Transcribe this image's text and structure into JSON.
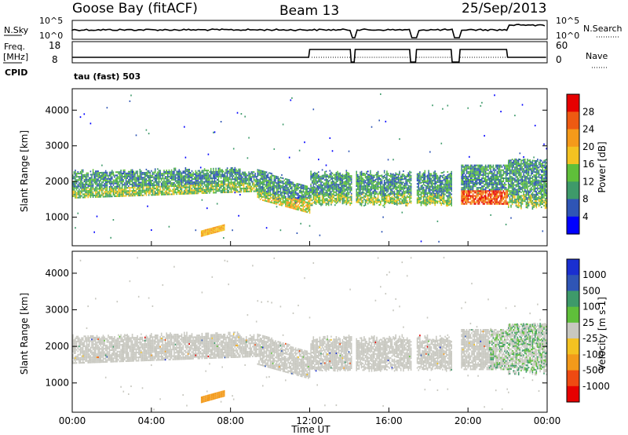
{
  "header": {
    "station": "Goose Bay (fitACF)",
    "beam": "Beam 13",
    "date": "25/Sep/2013"
  },
  "noise_panel": {
    "left_label": "N.Sky",
    "left_ticks": [
      "10^5",
      "10^0"
    ],
    "right_ticks": [
      "10^5",
      "10^0"
    ],
    "right_label": "N.Search"
  },
  "freq_panel": {
    "left_label_1": "Freq.",
    "left_label_2": "[MHz]",
    "left_ticks": [
      "18",
      "8"
    ],
    "right_ticks": [
      "60",
      "0"
    ],
    "right_label": "Nave",
    "cpid_label": "CPID",
    "cpid_value": "tau (fast) 503"
  },
  "colors": {
    "power_scale": [
      "#0000ff",
      "#2f55b5",
      "#3e9a6a",
      "#5fbf3a",
      "#f4c221",
      "#f59a1a",
      "#ee5a12",
      "#e60000"
    ],
    "velocity_scale": [
      "#e60000",
      "#ef4a12",
      "#f39a1a",
      "#f4c221",
      "#c8c8c0",
      "#5fbf3a",
      "#3e9a6a",
      "#2f55b5",
      "#1a2fd0"
    ]
  },
  "chart_data": [
    {
      "type": "heatmap",
      "panel": "power",
      "ylabel": "Slant Range [km]",
      "yticks": [
        "1000",
        "2000",
        "3000",
        "4000"
      ],
      "ylim": [
        200,
        4600
      ],
      "xlim": [
        0,
        24
      ],
      "colorbar_label": "Power [dB]",
      "colorbar_ticks": [
        "28",
        "24",
        "20",
        "16",
        "12",
        "8",
        "4"
      ],
      "features": [
        {
          "hours": [
            0,
            12
          ],
          "band_km": [
            1500,
            2350
          ],
          "level": "8-16 dB"
        },
        {
          "hours": [
            9.5,
            12
          ],
          "band_km": [
            1000,
            1600
          ],
          "level": "12-20 dB"
        },
        {
          "hours": [
            12,
            22
          ],
          "band_km": [
            1300,
            2200
          ],
          "level": "8-24 dB"
        },
        {
          "hours": [
            19.5,
            22
          ],
          "band_km": [
            1400,
            1700
          ],
          "level": "20-28 dB"
        },
        {
          "hours": [
            6.5,
            7.7
          ],
          "band_km": [
            450,
            650
          ],
          "level": "12-20 dB"
        }
      ],
      "data_gaps_hours": [
        [
          14.1,
          14.3
        ],
        [
          17.1,
          17.4
        ],
        [
          19.2,
          19.6
        ]
      ]
    },
    {
      "type": "heatmap",
      "panel": "velocity",
      "xlabel": "Time UT",
      "xticks": [
        "00:00",
        "04:00",
        "08:00",
        "12:00",
        "16:00",
        "20:00",
        "00:00"
      ],
      "ylabel": "Slant Range [km]",
      "yticks": [
        "1000",
        "2000",
        "3000",
        "4000"
      ],
      "ylim": [
        200,
        4600
      ],
      "xlim": [
        0,
        24
      ],
      "colorbar_label": "Velocity [m s-1]",
      "colorbar_ticks": [
        "1000",
        "500",
        "100",
        "25",
        "-25",
        "-100",
        "-500",
        "-1000"
      ],
      "features": [
        {
          "hours": [
            0,
            12
          ],
          "band_km": [
            1500,
            2350
          ],
          "velocity": "-25 to 25 m/s"
        },
        {
          "hours": [
            12,
            22
          ],
          "band_km": [
            1300,
            2200
          ],
          "velocity": "-25 to 25 m/s"
        },
        {
          "hours": [
            6.5,
            7.7
          ],
          "band_km": [
            450,
            650
          ],
          "velocity": "-100 to -500 m/s"
        },
        {
          "hours": [
            21,
            24
          ],
          "band_km": [
            1800,
            2600
          ],
          "velocity": "25 to 500 m/s"
        }
      ]
    }
  ]
}
